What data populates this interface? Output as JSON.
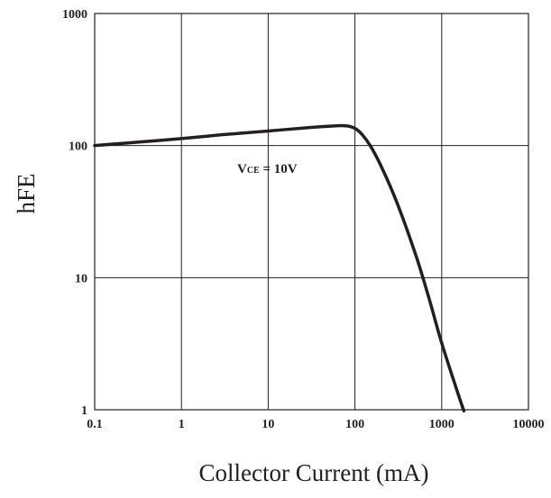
{
  "chart_data": {
    "type": "line",
    "xscale": "log",
    "yscale": "log",
    "xlim": [
      0.1,
      10000
    ],
    "ylim": [
      1,
      1000
    ],
    "xlabel": "Collector Current (mA)",
    "ylabel": "hFE",
    "x_ticks": [
      "0.1",
      "1",
      "10",
      "100",
      "1000",
      "10000"
    ],
    "y_ticks": [
      "1",
      "10",
      "100",
      "1000"
    ],
    "grid": true,
    "annotation": {
      "main": "V",
      "sub": "CE",
      "rest": " = 10V"
    },
    "series": [
      {
        "color": "#231f20",
        "x": [
          0.1,
          0.3,
          1,
          3,
          10,
          30,
          60,
          80,
          100,
          120,
          150,
          200,
          300,
          500,
          700,
          1000,
          1500,
          1800
        ],
        "y": [
          100,
          106,
          113,
          121,
          129,
          137,
          141,
          141,
          135,
          122,
          100,
          70,
          38,
          15,
          7.3,
          3.2,
          1.4,
          0.98
        ]
      }
    ]
  }
}
